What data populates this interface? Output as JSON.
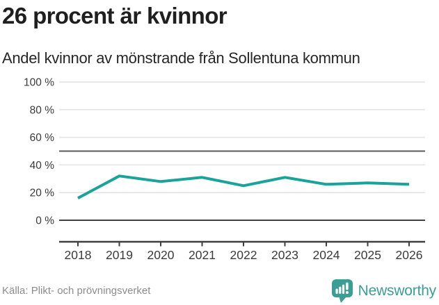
{
  "header": {
    "title": "26 procent är kvinnor",
    "subtitle": "Andel kvinnor av mönstrande från Sollentuna kommun"
  },
  "chart_data": {
    "type": "line",
    "title": "26 procent är kvinnor",
    "subtitle": "Andel kvinnor av mönstrande från Sollentuna kommun",
    "categories": [
      "2018",
      "2019",
      "2020",
      "2021",
      "2022",
      "2023",
      "2024",
      "2025",
      "2026"
    ],
    "series": [
      {
        "name": "Andel kvinnor av mönstrande",
        "values": [
          16,
          32,
          28,
          31,
          25,
          31,
          26,
          27,
          26
        ]
      }
    ],
    "xlabel": "",
    "ylabel": "",
    "ylim": [
      0,
      100
    ],
    "yticks": [
      0,
      20,
      40,
      60,
      80,
      100
    ],
    "ytick_suffix": " %",
    "reference_line_y": 50,
    "grid": true,
    "legend_position": "none"
  },
  "footer": {
    "source": "Källa: Plikt- och prövningsverket",
    "brand": "Newsworthy"
  },
  "colors": {
    "line": "#1aa398",
    "brand_teal": "#3c9d95",
    "grid_light": "#e2e2e2",
    "grid_mid": "#595959",
    "axis_dark": "#3f3f3f",
    "axis_text": "#3a3a3a",
    "title_text": "#1f1f1f",
    "source_text": "#8c8c8c"
  }
}
